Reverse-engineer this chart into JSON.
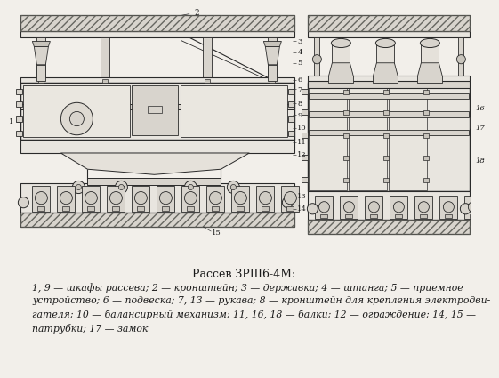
{
  "title": "Рассев ЗРШ6-4М:",
  "caption_lines": [
    "1, 9 — шкафы рассева; 2 — кронштейн; 3 — державка; 4 — штанга; 5 — приемное",
    "устройство; 6 — подвеска; 7, 13 — рукава; 8 — кронштейн для крепления электродви-",
    "гателя; 10 — балансирный механизм; 11, 16, 18 — балки; 12 — ограждение; 14, 15 —",
    "патрубки; 17 — замок"
  ],
  "bg_color": "#f2efea",
  "text_color": "#1a1a1a",
  "title_fontsize": 9,
  "caption_fontsize": 7.8,
  "line_color": "#2a2a2a",
  "hatch_color": "#888880",
  "light_fill": "#e8e5df",
  "mid_fill": "#d8d4cd",
  "dark_fill": "#c8c4bc"
}
